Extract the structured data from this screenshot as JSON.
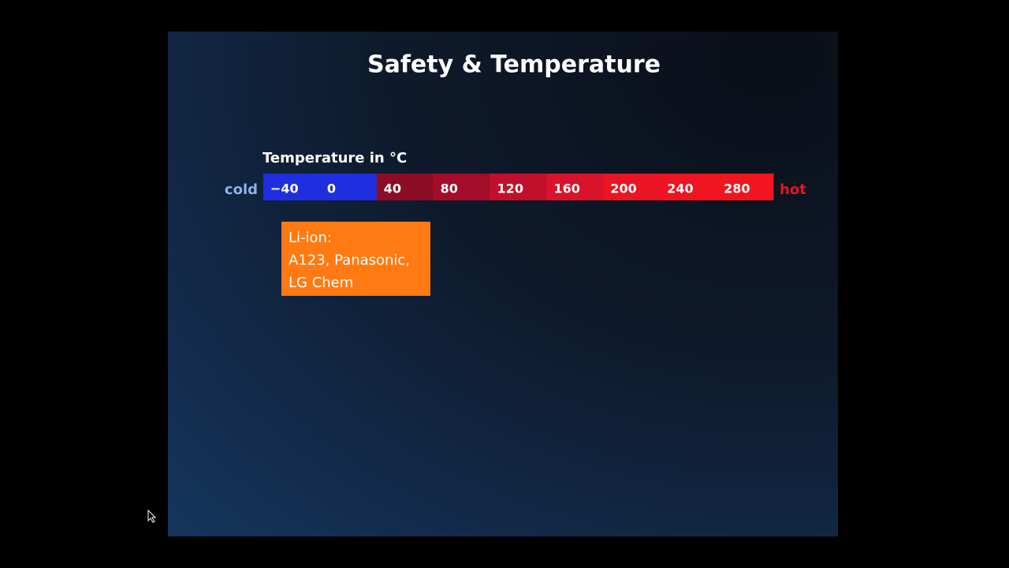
{
  "slide": {
    "title": "Safety & Temperature",
    "scale": {
      "label": "Temperature in °C",
      "cold": "cold",
      "hot": "hot",
      "segments": [
        {
          "label": "−40",
          "color": "#1f2fe0"
        },
        {
          "label": "0",
          "color": "#1f2fe0"
        },
        {
          "label": "40",
          "color": "#8c0c26"
        },
        {
          "label": "80",
          "color": "#a30d2a"
        },
        {
          "label": "120",
          "color": "#c0102c"
        },
        {
          "label": "160",
          "color": "#d8132a"
        },
        {
          "label": "200",
          "color": "#ea1422"
        },
        {
          "label": "240",
          "color": "#ee1420"
        },
        {
          "label": "280",
          "color": "#f2141e"
        }
      ]
    },
    "callout": {
      "lines": [
        "Li-ion:",
        "A123, Panasonic,",
        "LG Chem"
      ]
    }
  }
}
